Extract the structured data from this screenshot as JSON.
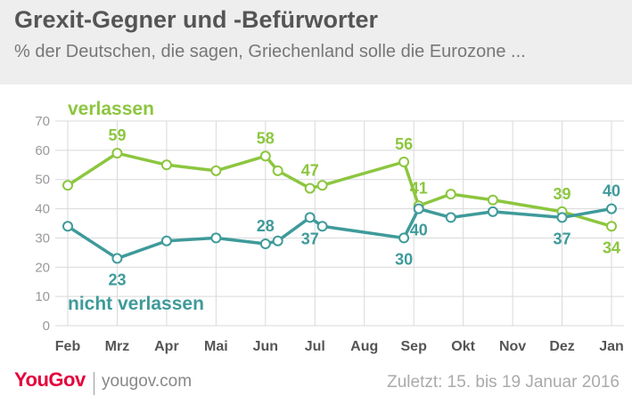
{
  "header": {
    "title": "Grexit-Gegner und -Befürworter",
    "subtitle": "% der Deutschen, die sagen, Griechenland solle die Eurozone ..."
  },
  "footer": {
    "logo": "YouGov",
    "url": "yougov.com",
    "note": "Zuletzt: 15. bis 19 Januar 2016"
  },
  "colors": {
    "verlassen": "#8cc63f",
    "nicht_verlassen": "#3f9a9a",
    "grid": "#d9d9d9",
    "axis_text": "#555555",
    "brand": "#e4003b"
  },
  "chart_data": {
    "type": "line",
    "ylim": [
      0,
      70
    ],
    "yticks": [
      0,
      10,
      20,
      30,
      40,
      50,
      60,
      70
    ],
    "xlim": [
      0,
      11
    ],
    "months": [
      "Feb",
      "Mrz",
      "Apr",
      "Mai",
      "Jun",
      "Jul",
      "Aug",
      "Sep",
      "Okt",
      "Nov",
      "Dez",
      "Jan"
    ],
    "series": [
      {
        "name": "verlassen",
        "x": [
          0,
          1,
          2,
          3,
          4,
          4.25,
          4.9,
          5.15,
          6.8,
          7.1,
          7.75,
          8.6,
          10.0,
          11.0
        ],
        "values": [
          48,
          59,
          55,
          53,
          58,
          53,
          47,
          48,
          56,
          41,
          45,
          43,
          39,
          34
        ],
        "labels": [
          {
            "i": 1,
            "text": "59",
            "pos": "above"
          },
          {
            "i": 4,
            "text": "58",
            "pos": "above"
          },
          {
            "i": 6,
            "text": "47",
            "pos": "above"
          },
          {
            "i": 8,
            "text": "56",
            "pos": "above"
          },
          {
            "i": 9,
            "text": "41",
            "pos": "above"
          },
          {
            "i": 12,
            "text": "39",
            "pos": "above"
          },
          {
            "i": 13,
            "text": "34",
            "pos": "below"
          }
        ]
      },
      {
        "name": "nicht verlassen",
        "x": [
          0,
          1,
          2,
          3,
          4,
          4.25,
          4.9,
          5.15,
          6.8,
          7.1,
          7.75,
          8.6,
          10.0,
          11.0
        ],
        "values": [
          34,
          23,
          29,
          30,
          28,
          29,
          37,
          34,
          30,
          40,
          37,
          39,
          37,
          40
        ],
        "labels": [
          {
            "i": 1,
            "text": "23",
            "pos": "below"
          },
          {
            "i": 4,
            "text": "28",
            "pos": "above"
          },
          {
            "i": 6,
            "text": "37",
            "pos": "below"
          },
          {
            "i": 8,
            "text": "30",
            "pos": "below"
          },
          {
            "i": 9,
            "text": "40",
            "pos": "below"
          },
          {
            "i": 12,
            "text": "37",
            "pos": "below"
          },
          {
            "i": 13,
            "text": "40",
            "pos": "above"
          }
        ]
      }
    ]
  }
}
